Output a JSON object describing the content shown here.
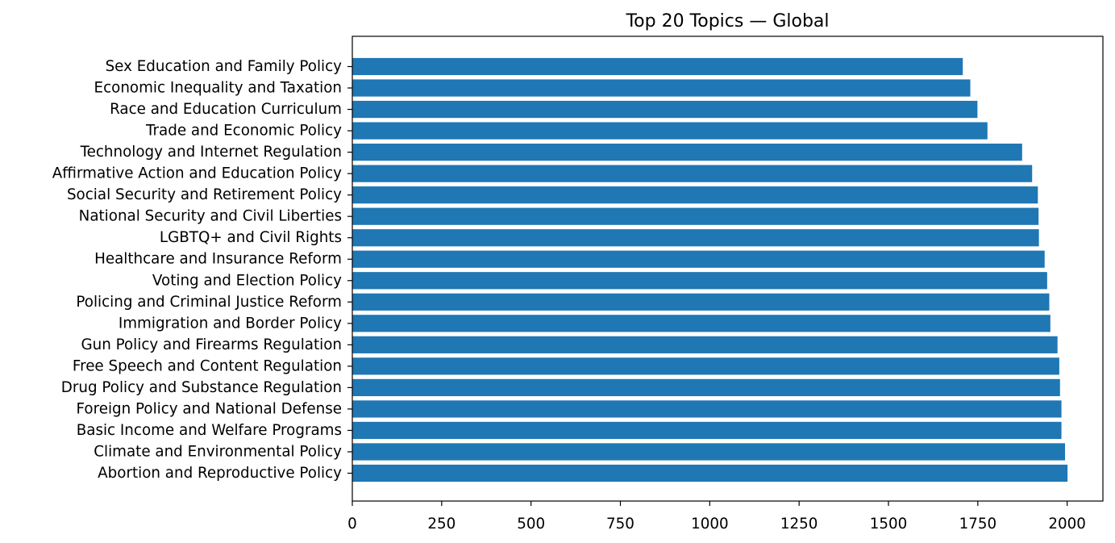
{
  "chart_data": {
    "type": "bar",
    "orientation": "horizontal",
    "title": "Top 20 Topics — Global",
    "xlabel": "",
    "ylabel": "",
    "xlim": [
      0,
      2100
    ],
    "xticks": [
      0,
      250,
      500,
      750,
      1000,
      1250,
      1500,
      1750,
      2000
    ],
    "grid": false,
    "bar_color": "#1f77b4",
    "categories": [
      "Sex Education and Family Policy",
      "Economic Inequality and Taxation",
      "Race and Education Curriculum",
      "Trade and Economic Policy",
      "Technology and Internet Regulation",
      "Affirmative Action and Education Policy",
      "Social Security and Retirement Policy",
      "National Security and Civil Liberties",
      "LGBTQ+ and Civil Rights",
      "Healthcare and Insurance Reform",
      "Voting and Election Policy",
      "Policing and Criminal Justice Reform",
      "Immigration and Border Policy",
      "Gun Policy and Firearms Regulation",
      "Free Speech and Content Regulation",
      "Drug Policy and Substance Regulation",
      "Foreign Policy and National Defense",
      "Basic Income and Welfare Programs",
      "Climate and Environmental Policy",
      "Abortion and Reproductive Policy"
    ],
    "values": [
      1708,
      1729,
      1749,
      1777,
      1874,
      1902,
      1918,
      1920,
      1921,
      1937,
      1944,
      1950,
      1953,
      1973,
      1978,
      1980,
      1984,
      1984,
      1994,
      2001
    ]
  }
}
